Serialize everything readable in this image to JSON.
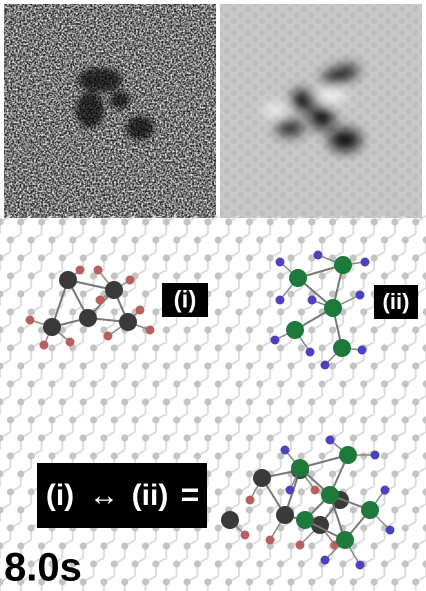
{
  "labels": {
    "i": "(i)",
    "ii": "(ii)"
  },
  "equation": {
    "left": "(i)",
    "arrow": "↔",
    "right": "(ii)",
    "equals": "="
  },
  "time": "8.0s"
}
